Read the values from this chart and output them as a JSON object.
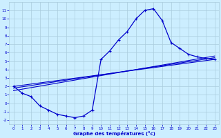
{
  "xlabel": "Graphe des températures (°c)",
  "bg_color": "#cceeff",
  "line_color": "#0000cc",
  "grid_color": "#aaccdd",
  "xlim": [
    -0.5,
    23.5
  ],
  "ylim": [
    -2.5,
    12.0
  ],
  "xticks": [
    0,
    1,
    2,
    3,
    4,
    5,
    6,
    7,
    8,
    9,
    10,
    11,
    12,
    13,
    14,
    15,
    16,
    17,
    18,
    19,
    20,
    21,
    22,
    23
  ],
  "yticks": [
    -2,
    -1,
    0,
    1,
    2,
    3,
    4,
    5,
    6,
    7,
    8,
    9,
    10,
    11
  ],
  "curve_x": [
    0,
    1,
    2,
    3,
    4,
    5,
    6,
    7,
    8,
    9,
    10,
    11,
    12,
    13,
    14,
    15,
    16,
    17,
    18,
    19,
    20,
    21,
    22,
    23
  ],
  "curve_y": [
    2.0,
    1.2,
    0.8,
    -0.3,
    -0.8,
    -1.3,
    -1.5,
    -1.7,
    -1.5,
    -0.8,
    5.2,
    6.2,
    7.5,
    8.5,
    10.0,
    11.0,
    11.2,
    9.8,
    7.2,
    6.5,
    5.8,
    5.5,
    5.3,
    5.2
  ],
  "trend1_x": [
    0,
    23
  ],
  "trend1_y": [
    2.0,
    5.2
  ],
  "trend2_x": [
    0,
    23
  ],
  "trend2_y": [
    1.8,
    5.4
  ],
  "trend3_x": [
    0,
    23
  ],
  "trend3_y": [
    1.5,
    5.6
  ]
}
